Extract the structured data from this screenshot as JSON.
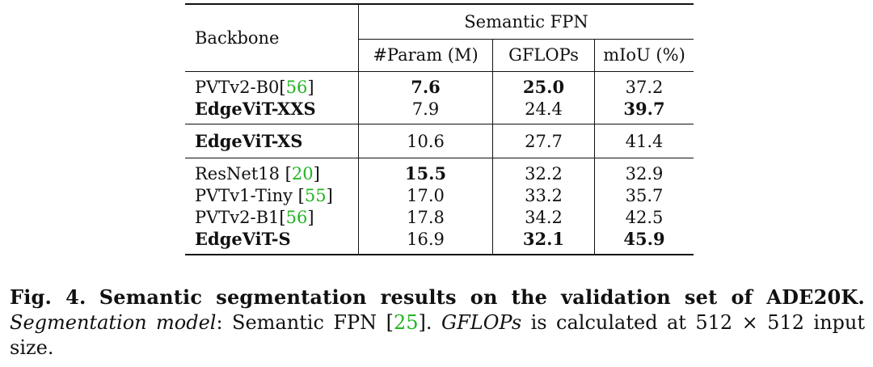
{
  "table": {
    "header": {
      "backbone": "Backbone",
      "group": "Semantic FPN",
      "columns": [
        "#Param (M)",
        "GFLOPs",
        "mIoU (%)"
      ]
    },
    "groups": [
      {
        "rows": [
          {
            "name": "PVTv2-B0",
            "cite": "56",
            "param": "7.6",
            "gflops": "25.0",
            "miou": "37.2",
            "bold_name": false,
            "bold": [
              "param",
              "gflops"
            ]
          },
          {
            "name": "EdgeViT-XXS",
            "cite": "",
            "param": "7.9",
            "gflops": "24.4",
            "miou": "39.7",
            "bold_name": true,
            "bold": [
              "miou"
            ]
          }
        ]
      },
      {
        "rows": [
          {
            "name": "EdgeViT-XS",
            "cite": "",
            "param": "10.6",
            "gflops": "27.7",
            "miou": "41.4",
            "bold_name": true,
            "bold": []
          }
        ]
      },
      {
        "rows": [
          {
            "name": "ResNet18 ",
            "cite": "20",
            "param": "15.5",
            "gflops": "32.2",
            "miou": "32.9",
            "bold_name": false,
            "bold": [
              "param"
            ]
          },
          {
            "name": "PVTv1-Tiny ",
            "cite": "55",
            "param": "17.0",
            "gflops": "33.2",
            "miou": "35.7",
            "bold_name": false,
            "bold": []
          },
          {
            "name": "PVTv2-B1",
            "cite": "56",
            "param": "17.8",
            "gflops": "34.2",
            "miou": "42.5",
            "bold_name": false,
            "bold": []
          },
          {
            "name": "EdgeViT-S",
            "cite": "",
            "param": "16.9",
            "gflops": "32.1",
            "miou": "45.9",
            "bold_name": true,
            "bold": [
              "gflops",
              "miou"
            ]
          }
        ]
      }
    ]
  },
  "caption": {
    "label": "Fig. 4.",
    "title": "Semantic segmentation results on the validation set of ADE20K.",
    "model_label": "Segmentation model",
    "model_text": ": Semantic FPN ",
    "model_cite": "25",
    "gflops_label": "GFLOPs",
    "gflops_text": " is calculated at 512 × 512 input size."
  },
  "colors": {
    "citation": "#22b522",
    "text": "#111111"
  }
}
